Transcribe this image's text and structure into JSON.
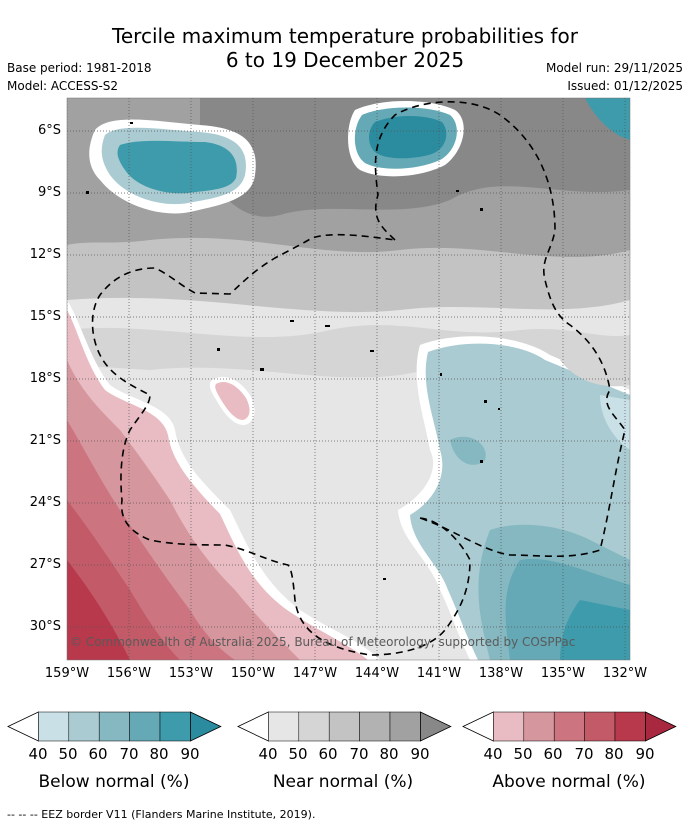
{
  "title_line1": "Tercile maximum temperature probabilities for",
  "title_line2": "6 to 19 December 2025",
  "base_period": "Base period: 1981-2018",
  "model": "Model: ACCESS-S2",
  "model_run": "Model run: 29/11/2025",
  "issued": "Issued: 01/12/2025",
  "lat_labels": [
    "6°S",
    "9°S",
    "12°S",
    "15°S",
    "18°S",
    "21°S",
    "24°S",
    "27°S",
    "30°S"
  ],
  "lon_labels": [
    "159°W",
    "156°W",
    "153°W",
    "150°W",
    "147°W",
    "144°W",
    "141°W",
    "138°W",
    "135°W",
    "132°W"
  ],
  "copyright": "© Commonwealth of Australia 2025, Bureau of Meteorology, supported by COSPPac",
  "legends": [
    {
      "label": "Below normal (%)",
      "ticks": [
        "40",
        "50",
        "60",
        "70",
        "80",
        "90"
      ],
      "colors": [
        "#ffffff",
        "#c8e0e6",
        "#a9cbd1",
        "#86b8c1",
        "#64a9b5",
        "#3e9bab",
        "#2a8c9e"
      ]
    },
    {
      "label": "Near normal (%)",
      "ticks": [
        "40",
        "50",
        "60",
        "70",
        "80",
        "90"
      ],
      "colors": [
        "#ffffff",
        "#e6e6e6",
        "#d5d5d5",
        "#c3c3c3",
        "#b2b2b2",
        "#a1a1a1",
        "#888888"
      ]
    },
    {
      "label": "Above normal (%)",
      "ticks": [
        "40",
        "50",
        "60",
        "70",
        "80",
        "90"
      ],
      "colors": [
        "#ffffff",
        "#e8bcc2",
        "#d6969e",
        "#cc7580",
        "#c35a67",
        "#b8384c",
        "#a7283f"
      ]
    }
  ],
  "footnote": "--  --  -- EEZ border V11 (Flanders Marine Institute, 2019)."
}
